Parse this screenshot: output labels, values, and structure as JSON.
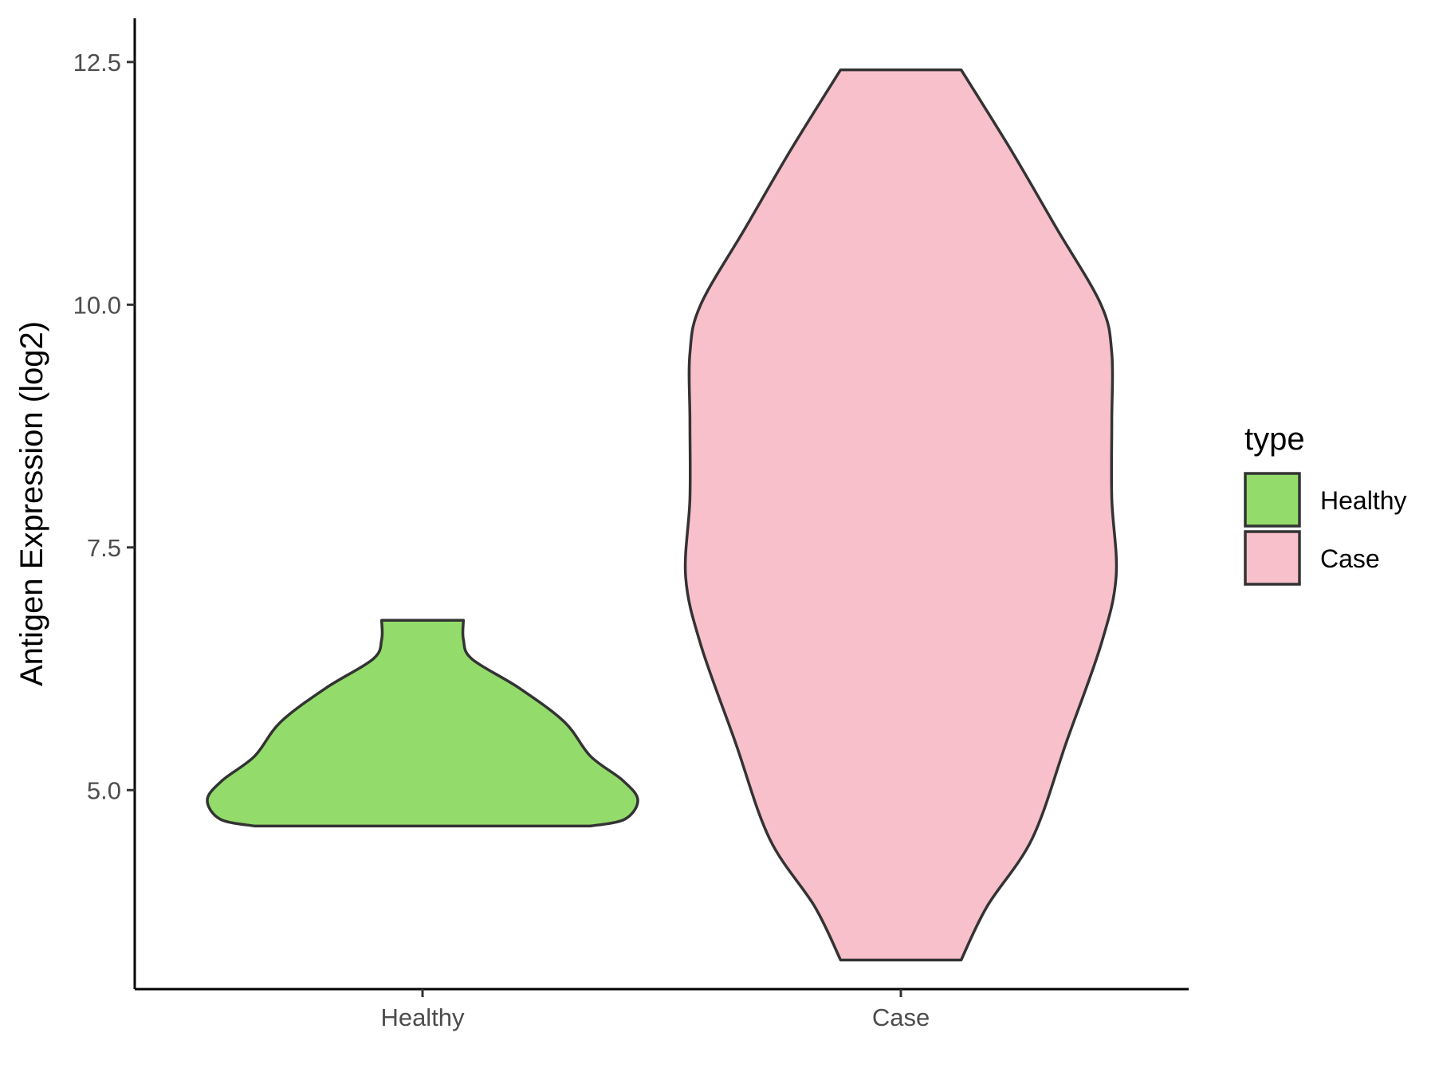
{
  "chart_data": {
    "type": "violin",
    "title": "",
    "xlabel": "",
    "ylabel": "Antigen Expression (log2)",
    "categories": [
      "Healthy",
      "Case"
    ],
    "ylim": [
      2.95,
      12.95
    ],
    "yticks": [
      5.0,
      7.5,
      10.0,
      12.5
    ],
    "ytick_labels": [
      "5.0",
      "7.5",
      "10.0",
      "12.5"
    ],
    "grid": false,
    "legend": {
      "title": "type",
      "position": "right",
      "entries": [
        {
          "label": "Healthy",
          "color": "#93dc6b"
        },
        {
          "label": "Case",
          "color": "#f8c0cb"
        }
      ]
    },
    "series": [
      {
        "category": "Healthy",
        "color": "#93dc6b",
        "min": 4.63,
        "max": 6.75,
        "density_profile": [
          {
            "y": 4.63,
            "w": 0.78
          },
          {
            "y": 4.7,
            "w": 0.94
          },
          {
            "y": 4.9,
            "w": 1.0
          },
          {
            "y": 5.1,
            "w": 0.93
          },
          {
            "y": 5.35,
            "w": 0.78
          },
          {
            "y": 5.7,
            "w": 0.66
          },
          {
            "y": 6.05,
            "w": 0.45
          },
          {
            "y": 6.35,
            "w": 0.23
          },
          {
            "y": 6.55,
            "w": 0.19
          },
          {
            "y": 6.75,
            "w": 0.19
          }
        ]
      },
      {
        "category": "Case",
        "color": "#f8c0cb",
        "min": 3.25,
        "max": 12.42,
        "density_profile": [
          {
            "y": 3.25,
            "w": 0.28
          },
          {
            "y": 3.8,
            "w": 0.4
          },
          {
            "y": 4.5,
            "w": 0.61
          },
          {
            "y": 5.5,
            "w": 0.77
          },
          {
            "y": 6.5,
            "w": 0.93
          },
          {
            "y": 7.2,
            "w": 1.0
          },
          {
            "y": 8.0,
            "w": 0.98
          },
          {
            "y": 8.8,
            "w": 0.98
          },
          {
            "y": 9.5,
            "w": 0.98
          },
          {
            "y": 10.0,
            "w": 0.93
          },
          {
            "y": 10.8,
            "w": 0.72
          },
          {
            "y": 11.6,
            "w": 0.51
          },
          {
            "y": 12.42,
            "w": 0.28
          }
        ]
      }
    ]
  }
}
